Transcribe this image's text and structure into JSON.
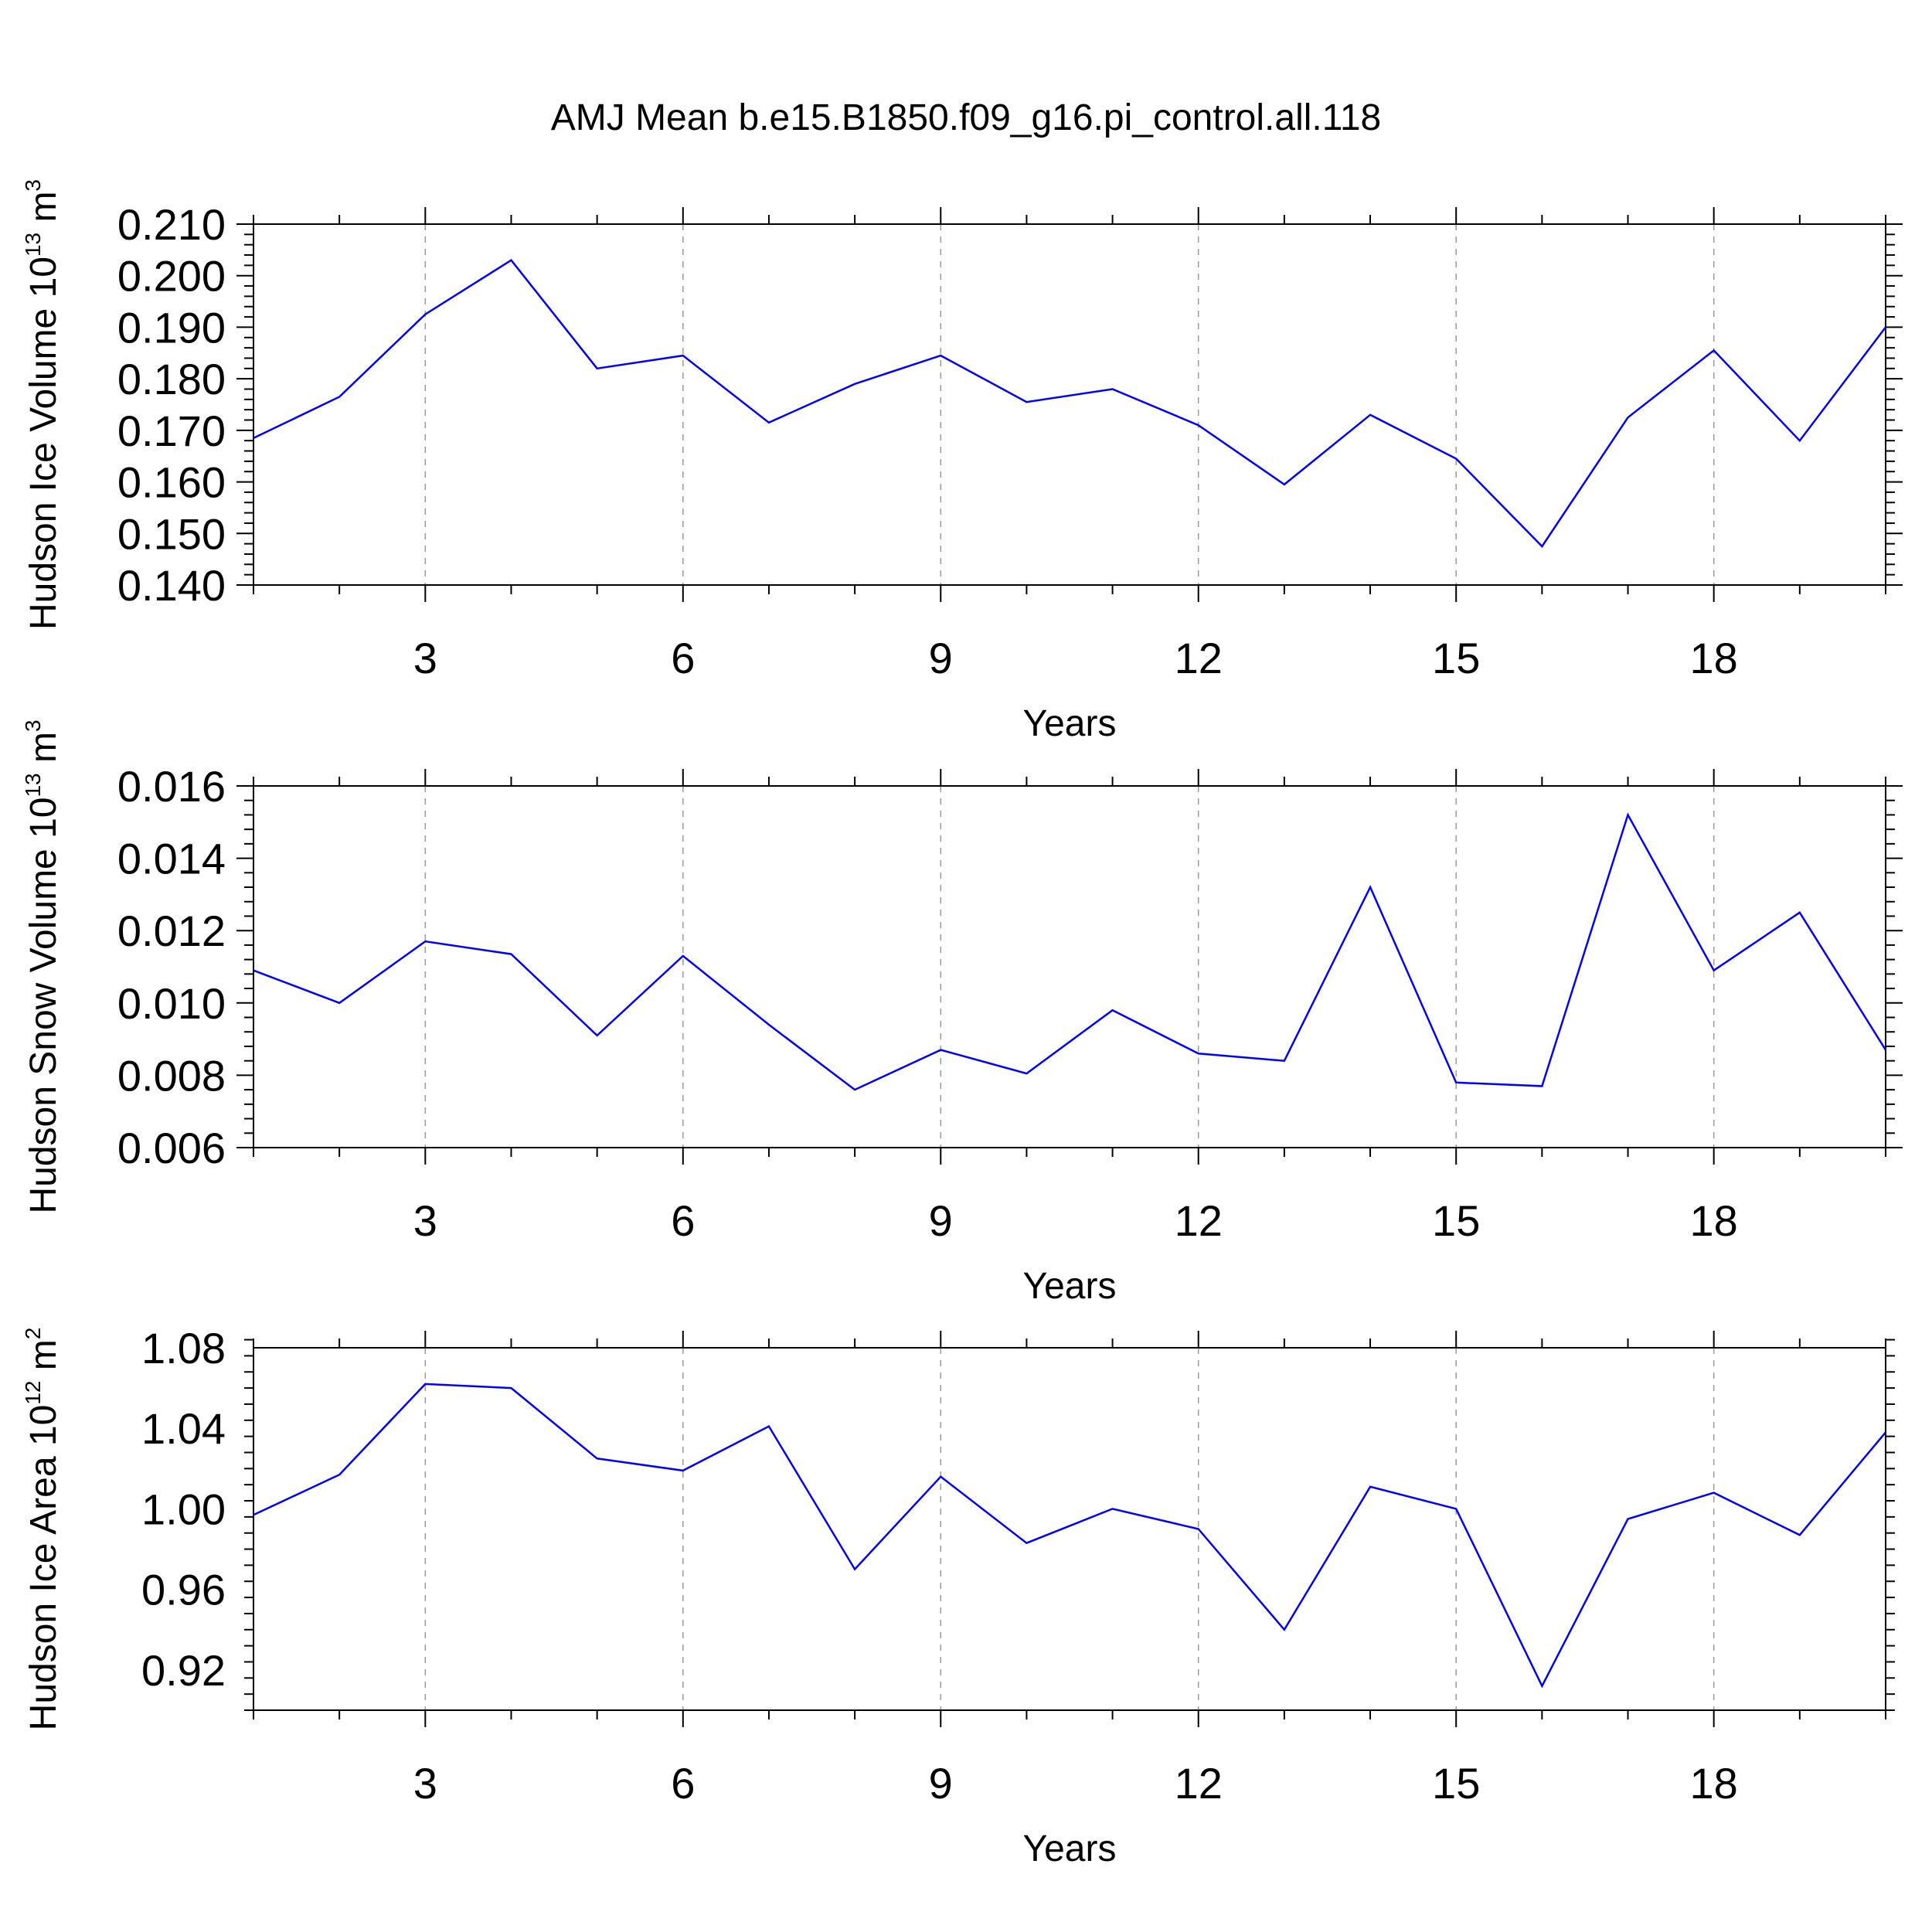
{
  "chart_data": [
    {
      "type": "line",
      "title": "AMJ Mean b.e15.B1850.f09_g16.pi_control.all.118",
      "xlabel": "Years",
      "ylabel": {
        "base": "Hudson Ice Volume 10",
        "exp": "13",
        "unit": " m",
        "unit_exp": "3"
      },
      "xlim": [
        1,
        20
      ],
      "ylim": [
        0.14,
        0.21
      ],
      "xticks": [
        3,
        6,
        9,
        12,
        15,
        18
      ],
      "xtick_labels": [
        "3",
        "6",
        "9",
        "12",
        "15",
        "18"
      ],
      "yticks": [
        0.14,
        0.15,
        0.16,
        0.17,
        0.18,
        0.19,
        0.2,
        0.21
      ],
      "ytick_labels": [
        "0.140",
        "0.150",
        "0.160",
        "0.170",
        "0.180",
        "0.190",
        "0.200",
        "0.210"
      ],
      "grid": "vertical dashed at major x ticks",
      "color": "#0000ff",
      "x": [
        1,
        2,
        3,
        4,
        5,
        6,
        7,
        8,
        9,
        10,
        11,
        12,
        13,
        14,
        15,
        16,
        17,
        18,
        19,
        20
      ],
      "y": [
        0.1685,
        0.1765,
        0.1925,
        0.203,
        0.182,
        0.1845,
        0.1715,
        0.179,
        0.1845,
        0.1755,
        0.178,
        0.171,
        0.1595,
        0.173,
        0.1645,
        0.1475,
        0.1725,
        0.1855,
        0.168,
        0.19
      ]
    },
    {
      "type": "line",
      "xlabel": "Years",
      "ylabel": {
        "base": "Hudson Snow Volume 10",
        "exp": "13",
        "unit": " m",
        "unit_exp": "3"
      },
      "xlim": [
        1,
        20
      ],
      "ylim": [
        0.006,
        0.016
      ],
      "xticks": [
        3,
        6,
        9,
        12,
        15,
        18
      ],
      "xtick_labels": [
        "3",
        "6",
        "9",
        "12",
        "15",
        "18"
      ],
      "yticks": [
        0.006,
        0.008,
        0.01,
        0.012,
        0.014,
        0.016
      ],
      "ytick_labels": [
        "0.006",
        "0.008",
        "0.010",
        "0.012",
        "0.014",
        "0.016"
      ],
      "grid": "vertical dashed at major x ticks",
      "color": "#0000ff",
      "x": [
        1,
        2,
        3,
        4,
        5,
        6,
        7,
        8,
        9,
        10,
        11,
        12,
        13,
        14,
        15,
        16,
        17,
        18,
        19,
        20
      ],
      "y": [
        0.0109,
        0.01,
        0.0117,
        0.01135,
        0.0091,
        0.0113,
        0.0094,
        0.0076,
        0.0087,
        0.00805,
        0.0098,
        0.0086,
        0.0084,
        0.0132,
        0.0078,
        0.0077,
        0.0152,
        0.0109,
        0.0125,
        0.0087
      ]
    },
    {
      "type": "line",
      "xlabel": "Years",
      "ylabel": {
        "base": "Hudson Ice Area 10",
        "exp": "12",
        "unit": " m",
        "unit_exp": "2"
      },
      "xlim": [
        1,
        20
      ],
      "ylim": [
        0.9,
        1.08
      ],
      "xticks": [
        3,
        6,
        9,
        12,
        15,
        18
      ],
      "xtick_labels": [
        "3",
        "6",
        "9",
        "12",
        "15",
        "18"
      ],
      "yticks": [
        0.92,
        0.96,
        1.0,
        1.04,
        1.08
      ],
      "ytick_labels": [
        "0.92",
        "0.96",
        "1.00",
        "1.04",
        "1.08"
      ],
      "grid": "vertical dashed at major x ticks",
      "color": "#0000ff",
      "x": [
        1,
        2,
        3,
        4,
        5,
        6,
        7,
        8,
        9,
        10,
        11,
        12,
        13,
        14,
        15,
        16,
        17,
        18,
        19,
        20
      ],
      "y": [
        0.997,
        1.017,
        1.062,
        1.06,
        1.025,
        1.019,
        1.041,
        0.97,
        1.016,
        0.983,
        1.0,
        0.99,
        0.94,
        1.011,
        1.0,
        0.912,
        0.995,
        1.008,
        0.987,
        1.038
      ]
    }
  ]
}
